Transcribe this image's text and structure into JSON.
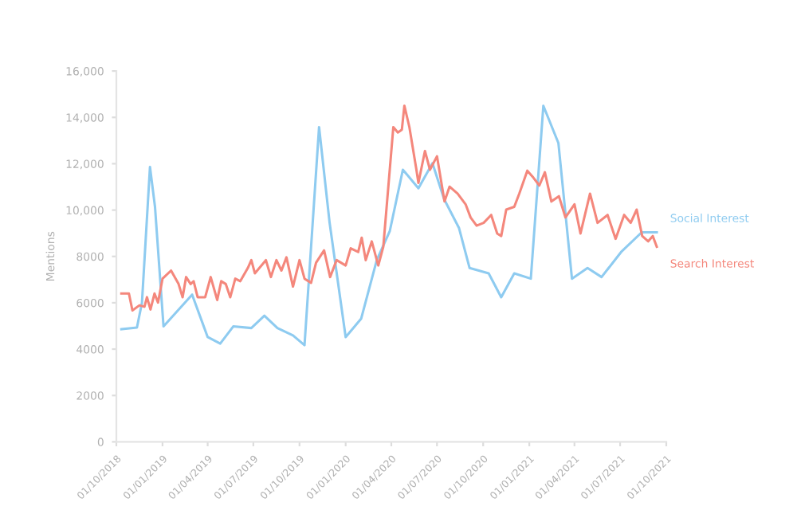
{
  "chart_data": {
    "type": "line",
    "ylabel": "Mentions",
    "xlim": [
      "2018-10-01",
      "2021-10-01"
    ],
    "xticks": [
      {
        "value": "2018-10-01",
        "label": "01/10/2018"
      },
      {
        "value": "2019-01-01",
        "label": "01/01/2019"
      },
      {
        "value": "2019-04-01",
        "label": "01/04/2019"
      },
      {
        "value": "2019-07-01",
        "label": "01/07/2019"
      },
      {
        "value": "2019-10-01",
        "label": "01/10/2019"
      },
      {
        "value": "2020-01-01",
        "label": "01/01/2020"
      },
      {
        "value": "2020-04-01",
        "label": "01/04/2020"
      },
      {
        "value": "2020-07-01",
        "label": "01/07/2020"
      },
      {
        "value": "2020-10-01",
        "label": "01/10/2020"
      },
      {
        "value": "2021-01-01",
        "label": "01/01/2021"
      },
      {
        "value": "2021-04-01",
        "label": "01/04/2021"
      },
      {
        "value": "2021-07-01",
        "label": "01/07/2021"
      },
      {
        "value": "2021-10-01",
        "label": "01/10/2021"
      }
    ],
    "ylim": [
      0,
      16000
    ],
    "yticks": [
      0,
      2000,
      4000,
      6000,
      8000,
      {
        "value": 10000,
        "label": "10,000"
      },
      {
        "value": 12000,
        "label": "12,000"
      },
      {
        "value": 14000,
        "label": "14,000"
      },
      {
        "value": 16000,
        "label": "16,000"
      }
    ],
    "grid": false,
    "marker": "none",
    "line_style": "solid",
    "series": [
      {
        "name": "Social Interest",
        "color": "#8ecbf0",
        "x": [
          "2018-10-11",
          "2018-11-11",
          "2018-11-21",
          "2018-12-07",
          "2018-12-17",
          "2019-01-03",
          "2019-03-01",
          "2019-04-01",
          "2019-04-26",
          "2019-05-22",
          "2019-06-27",
          "2019-07-23",
          "2019-08-18",
          "2019-09-18",
          "2019-10-11",
          "2019-11-09",
          "2019-11-30",
          "2020-01-01",
          "2020-02-01",
          "2020-03-03",
          "2020-03-29",
          "2020-04-24",
          "2020-05-25",
          "2020-06-22",
          "2020-07-15",
          "2020-08-14",
          "2020-09-04",
          "2020-10-12",
          "2020-11-06",
          "2020-12-02",
          "2021-01-04",
          "2021-01-29",
          "2021-02-28",
          "2021-03-27",
          "2021-04-27",
          "2021-05-25",
          "2021-07-03",
          "2021-08-13",
          "2021-09-12"
        ],
        "values": [
          4860,
          4930,
          6000,
          11860,
          10140,
          4980,
          6350,
          4520,
          4240,
          4980,
          4910,
          5440,
          4910,
          4590,
          4170,
          13580,
          9450,
          4520,
          5320,
          7840,
          9100,
          11740,
          10940,
          12020,
          10480,
          9220,
          7500,
          7270,
          6240,
          7270,
          7040,
          14500,
          12890,
          7040,
          7500,
          7110,
          8190,
          9040,
          9040
        ]
      },
      {
        "name": "Search Interest",
        "color": "#f4877c",
        "x": [
          "2018-10-11",
          "2018-10-26",
          "2018-11-02",
          "2018-11-16",
          "2018-11-26",
          "2018-12-01",
          "2018-12-08",
          "2018-12-16",
          "2018-12-23",
          "2019-01-01",
          "2019-01-18",
          "2019-02-02",
          "2019-02-10",
          "2019-02-17",
          "2019-02-26",
          "2019-03-04",
          "2019-03-12",
          "2019-03-27",
          "2019-04-07",
          "2019-04-20",
          "2019-04-28",
          "2019-05-07",
          "2019-05-16",
          "2019-05-26",
          "2019-06-05",
          "2019-06-20",
          "2019-06-27",
          "2019-07-04",
          "2019-07-26",
          "2019-08-05",
          "2019-08-16",
          "2019-08-26",
          "2019-09-05",
          "2019-09-18",
          "2019-10-01",
          "2019-10-11",
          "2019-10-24",
          "2019-11-03",
          "2019-11-19",
          "2019-12-01",
          "2019-12-14",
          "2020-01-01",
          "2020-01-11",
          "2020-01-26",
          "2020-02-02",
          "2020-02-10",
          "2020-02-22",
          "2020-03-06",
          "2020-03-16",
          "2020-04-05",
          "2020-04-14",
          "2020-04-22",
          "2020-04-27",
          "2020-05-07",
          "2020-05-21",
          "2020-05-25",
          "2020-06-07",
          "2020-06-17",
          "2020-07-01",
          "2020-07-16",
          "2020-07-26",
          "2020-08-11",
          "2020-08-27",
          "2020-09-06",
          "2020-09-18",
          "2020-10-02",
          "2020-10-17",
          "2020-10-29",
          "2020-11-06",
          "2020-11-16",
          "2020-12-02",
          "2020-12-12",
          "2020-12-28",
          "2021-01-09",
          "2021-01-21",
          "2021-02-01",
          "2021-02-14",
          "2021-03-01",
          "2021-03-14",
          "2021-04-01",
          "2021-04-13",
          "2021-05-02",
          "2021-05-17",
          "2021-06-06",
          "2021-06-22",
          "2021-07-09",
          "2021-07-22",
          "2021-08-03",
          "2021-08-14",
          "2021-08-26",
          "2021-09-04",
          "2021-09-12"
        ],
        "values": [
          6400,
          6400,
          5670,
          5890,
          5830,
          6240,
          5710,
          6400,
          6010,
          7040,
          7390,
          6810,
          6240,
          7110,
          6810,
          6930,
          6240,
          6240,
          7110,
          6120,
          6930,
          6810,
          6240,
          7040,
          6930,
          7500,
          7840,
          7270,
          7840,
          7110,
          7840,
          7390,
          7960,
          6700,
          7840,
          7040,
          6860,
          7730,
          8260,
          7110,
          7840,
          7610,
          8350,
          8190,
          8810,
          7840,
          8650,
          7610,
          8420,
          13580,
          13350,
          13470,
          14500,
          13580,
          11740,
          11170,
          12550,
          11740,
          12320,
          10370,
          11010,
          10710,
          10250,
          9680,
          9330,
          9450,
          9790,
          8990,
          8880,
          10020,
          10140,
          10710,
          11700,
          11400,
          11060,
          11630,
          10370,
          10600,
          9680,
          10250,
          8990,
          10710,
          9450,
          9790,
          8760,
          9790,
          9450,
          10020,
          8880,
          8650,
          8880,
          8420
        ]
      }
    ]
  }
}
